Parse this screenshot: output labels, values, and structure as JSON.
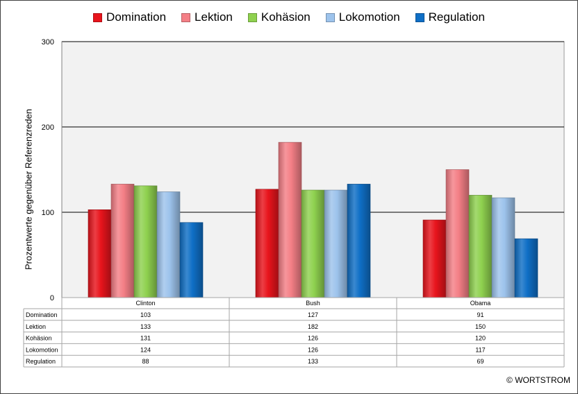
{
  "chart_data": {
    "type": "bar",
    "categories": [
      "Clinton",
      "Bush",
      "Obama"
    ],
    "series": [
      {
        "name": "Domination",
        "values": [
          103,
          127,
          91
        ],
        "color": "#e8141c"
      },
      {
        "name": "Lektion",
        "values": [
          133,
          182,
          150
        ],
        "color": "#f47f86"
      },
      {
        "name": "Kohäsion",
        "values": [
          131,
          126,
          120
        ],
        "color": "#8fd14f"
      },
      {
        "name": "Lokomotion",
        "values": [
          124,
          126,
          117
        ],
        "color": "#9dc3ec"
      },
      {
        "name": "Regulation",
        "values": [
          88,
          133,
          69
        ],
        "color": "#0f6fc6"
      }
    ],
    "title": "",
    "xlabel": "",
    "ylabel": "Prozentwerte  gegenüber Referenzreden",
    "ylim": [
      0,
      300
    ],
    "yticks": [
      0,
      100,
      200,
      300
    ],
    "grid": true,
    "legend_position": "top",
    "data_table": true,
    "plot_background": "#f2f2f2"
  },
  "watermark": "© WORTSTROM"
}
